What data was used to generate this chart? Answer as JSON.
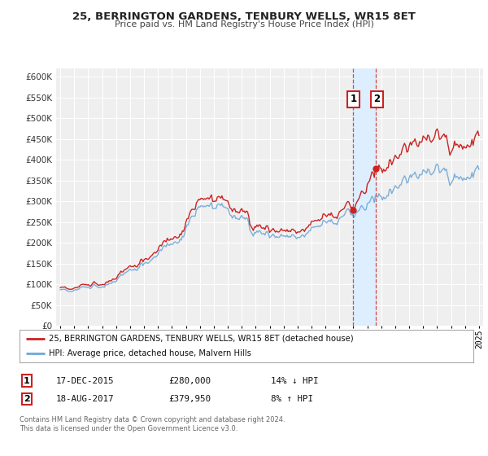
{
  "title": "25, BERRINGTON GARDENS, TENBURY WELLS, WR15 8ET",
  "subtitle": "Price paid vs. HM Land Registry's House Price Index (HPI)",
  "legend_line1": "25, BERRINGTON GARDENS, TENBURY WELLS, WR15 8ET (detached house)",
  "legend_line2": "HPI: Average price, detached house, Malvern Hills",
  "annotation1_date": "17-DEC-2015",
  "annotation1_price": "£280,000",
  "annotation1_hpi": "14% ↓ HPI",
  "annotation1_year": 2015.96,
  "annotation1_value": 280000,
  "annotation2_date": "18-AUG-2017",
  "annotation2_price": "£379,950",
  "annotation2_hpi": "8% ↑ HPI",
  "annotation2_year": 2017.63,
  "annotation2_value": 379950,
  "footer1": "Contains HM Land Registry data © Crown copyright and database right 2024.",
  "footer2": "This data is licensed under the Open Government Licence v3.0.",
  "hpi_color": "#6ea8d8",
  "price_color": "#cc2222",
  "background_color": "#ffffff",
  "plot_bg_color": "#efefef",
  "grid_color": "#ffffff",
  "highlight_bg": "#ddeeff",
  "ylim": [
    0,
    620000
  ],
  "yticks": [
    0,
    50000,
    100000,
    150000,
    200000,
    250000,
    300000,
    350000,
    400000,
    450000,
    500000,
    550000,
    600000
  ],
  "xlim_start": 1994.7,
  "xlim_end": 2025.3,
  "xticks": [
    1995,
    1996,
    1997,
    1998,
    1999,
    2000,
    2001,
    2002,
    2003,
    2004,
    2005,
    2006,
    2007,
    2008,
    2009,
    2010,
    2011,
    2012,
    2013,
    2014,
    2015,
    2016,
    2017,
    2018,
    2019,
    2020,
    2021,
    2022,
    2023,
    2024,
    2025
  ]
}
